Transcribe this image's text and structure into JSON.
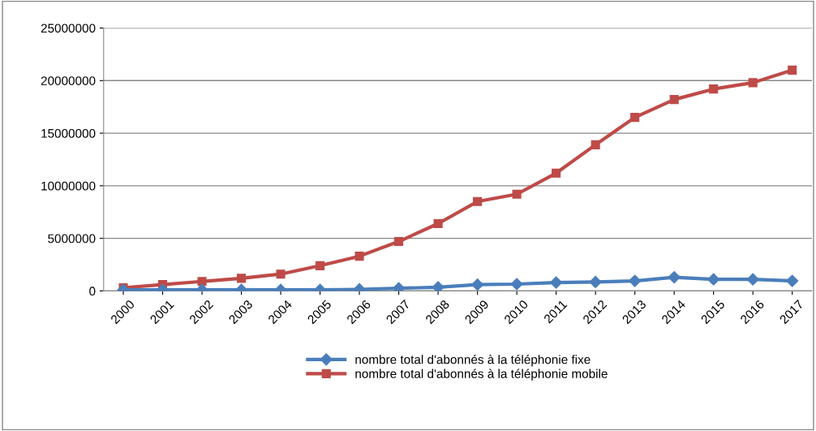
{
  "chart_data": {
    "type": "line",
    "categories": [
      "2000",
      "2001",
      "2002",
      "2003",
      "2004",
      "2005",
      "2006",
      "2007",
      "2008",
      "2009",
      "2010",
      "2011",
      "2012",
      "2013",
      "2014",
      "2015",
      "2016",
      "2017"
    ],
    "series": [
      {
        "name": "nombre total d'abonnés à la téléphonie fixe",
        "color": "#4a7ebb",
        "marker": "diamond",
        "values": [
          100000,
          100000,
          100000,
          100000,
          100000,
          100000,
          150000,
          250000,
          350000,
          600000,
          650000,
          800000,
          850000,
          950000,
          1300000,
          1100000,
          1100000,
          950000
        ]
      },
      {
        "name": "nombre total d'abonnés à la téléphonie mobile",
        "color": "#be4b48",
        "marker": "square",
        "values": [
          300000,
          600000,
          900000,
          1200000,
          1600000,
          2400000,
          3300000,
          4700000,
          6400000,
          8500000,
          9200000,
          11200000,
          13900000,
          16500000,
          18200000,
          19200000,
          19800000,
          21000000
        ]
      }
    ],
    "ylim": [
      0,
      25000000
    ],
    "yticks": [
      0,
      5000000,
      10000000,
      15000000,
      20000000,
      25000000
    ],
    "grid": "y",
    "legend": "bottom"
  }
}
